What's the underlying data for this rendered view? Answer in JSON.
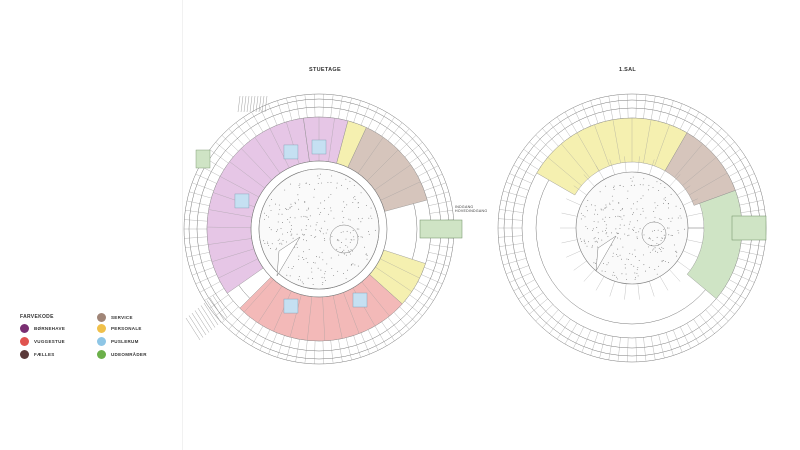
{
  "plans": [
    {
      "title": "STUETAGE"
    },
    {
      "title": "1.SAL"
    }
  ],
  "entrance_note": "INDGANG HOVEDINDGANG",
  "legend": {
    "title": "FARVEKODE",
    "items": [
      {
        "label": "BØRNEHAVE",
        "color": "#7a2f72"
      },
      {
        "label": "VUGGESTUE",
        "color": "#e0534f"
      },
      {
        "label": "FÆLLES",
        "color": "#5b3a3a"
      },
      {
        "label": "SERVICE",
        "color": "#a08577"
      },
      {
        "label": "PERSONALE",
        "color": "#f0c04a"
      },
      {
        "label": "PUSLERUM",
        "color": "#8ec6e6"
      },
      {
        "label": "UDEOMRÅDER",
        "color": "#6cb04a"
      }
    ]
  },
  "zone_colors": {
    "boernehave": "#e6c6e6",
    "vuggestue": "#f3b9b8",
    "service": "#d6c5bc",
    "personale": "#f5f0b0",
    "puslerum": "#c5e0f2",
    "udeomraader": "#cfe4c5",
    "courtyard": "#fafafa",
    "line": "#7a7a7a"
  }
}
